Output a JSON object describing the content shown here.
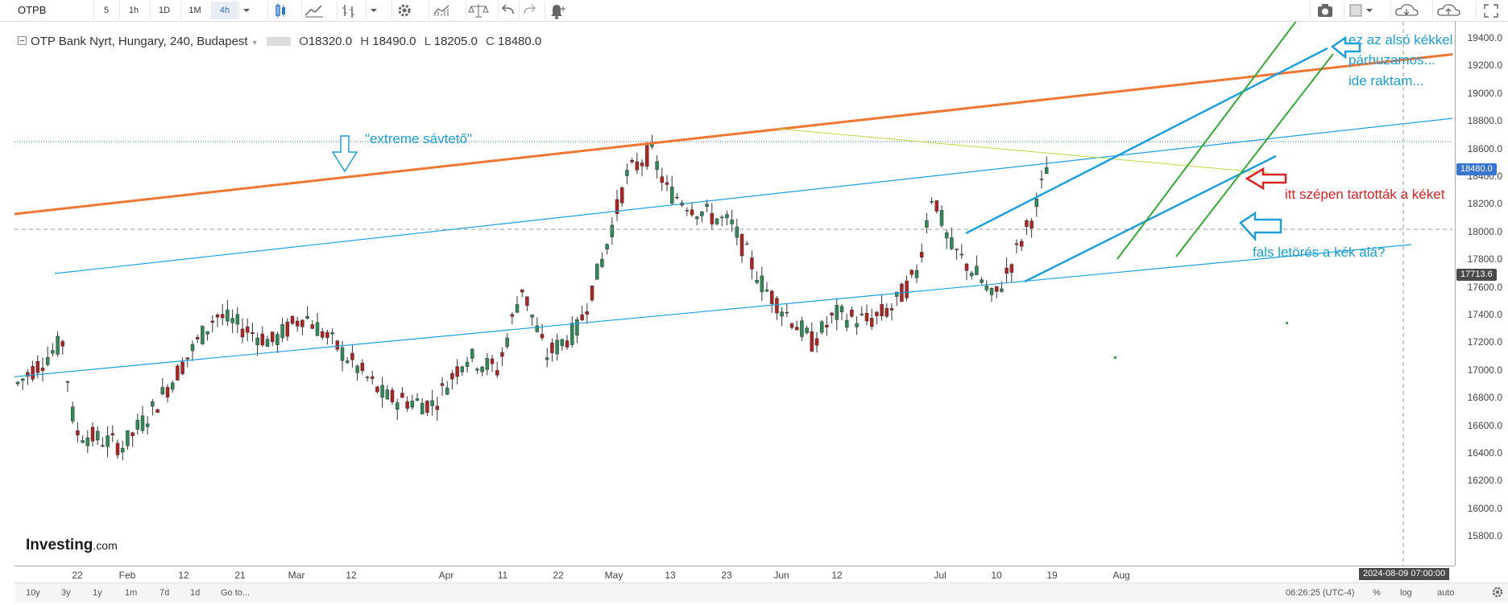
{
  "toolbar": {
    "symbol": "OTPB",
    "timeframes": [
      "5",
      "1h",
      "1D",
      "1M",
      "4h"
    ],
    "active_timeframe": "4h",
    "icons": [
      "candle-icon",
      "area-chart-icon",
      "bar-chart-icon",
      "dropdown-icon",
      "gear-icon",
      "indicators-icon",
      "compare-icon",
      "undo-icon",
      "redo-icon",
      "alert-icon",
      "camera-icon",
      "layout-icon",
      "cloud-load-icon",
      "cloud-save-icon",
      "fullscreen-icon"
    ]
  },
  "legend": {
    "title": "OTP Bank Nyrt, Hungary, 240, Budapest",
    "o_label": "O",
    "o": "18320.0",
    "h_label": "H",
    "h": "18490.0",
    "l_label": "L",
    "l": "18205.0",
    "c_label": "C",
    "c": "18480.0"
  },
  "price_axis": {
    "ticks": [
      "19400.0",
      "19200.0",
      "19000.0",
      "18800.0",
      "18600.0",
      "18400.0",
      "18200.0",
      "18000.0",
      "17800.0",
      "17600.0",
      "17400.0",
      "17200.0",
      "17000.0",
      "16800.0",
      "16600.0",
      "16400.0",
      "16200.0",
      "16000.0",
      "15800.0"
    ],
    "last_price": "18480.0",
    "crosshair_price": "17713.6"
  },
  "time_axis": {
    "ticks": [
      "22",
      "Feb",
      "12",
      "21",
      "Mar",
      "12",
      "Apr",
      "11",
      "22",
      "May",
      "13",
      "23",
      "Jun",
      "12",
      "Jul",
      "10",
      "19",
      "Aug"
    ],
    "crosshair_time": "2024-08-09 07:00:00"
  },
  "annotations": {
    "extreme": "\"extreme sávtető\"",
    "parallel_1": "ez az alsó kékkel",
    "parallel_2": "párhuzamos...",
    "parallel_3": "ide raktam...",
    "held": "itt szépen tartották a kéket",
    "false_break": "fals letörés a kék alá?"
  },
  "bottom_bar": {
    "ranges": [
      "10y",
      "3y",
      "1y",
      "1m",
      "7d",
      "1d"
    ],
    "goto": "Go to...",
    "clock": "06:26:25 (UTC-4)",
    "percent": "%",
    "log": "log",
    "auto": "auto"
  },
  "logo": {
    "brand": "Investing",
    "suffix": ".com"
  },
  "colors": {
    "up": "#2e8b57",
    "down": "#b22222",
    "channel": "#1ba0e2",
    "orange": "#ee7733",
    "green_lines": "#33aa33",
    "annotation_red": "#dd2222",
    "annotation_blue": "#1a9fd8",
    "last_price_tag": "#3975d2",
    "crosshair_tag": "#4a4a4a"
  }
}
